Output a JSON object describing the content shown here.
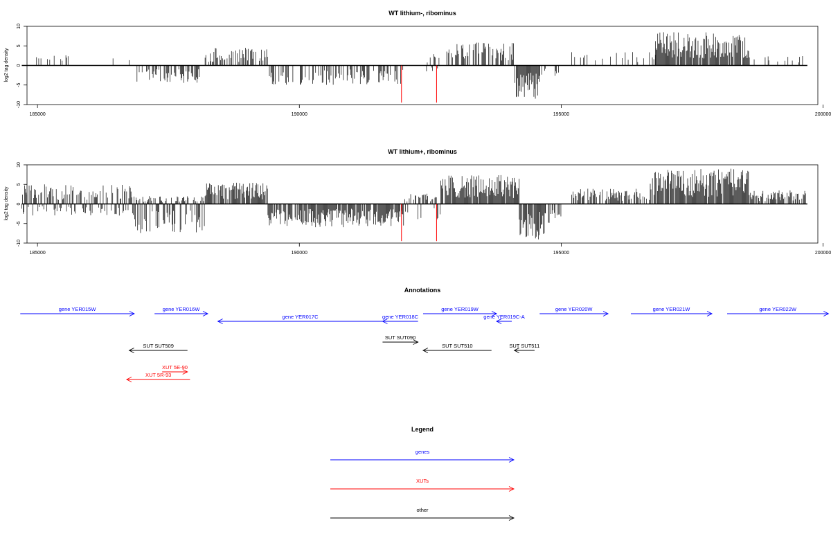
{
  "chart_data": [
    {
      "type": "bar",
      "title": "WT lithium-, ribominus",
      "ylabel": "log2 tag density",
      "xlim": [
        184800,
        199900
      ],
      "ylim": [
        -10,
        10
      ],
      "xticks": [
        185000,
        190000,
        195000,
        200000
      ],
      "xtick_labels": [
        "185000",
        "190000",
        "195000",
        "200000"
      ],
      "yticks": [
        -10,
        -5,
        0,
        5,
        10
      ],
      "ytick_labels": [
        "-10",
        "-5",
        "0",
        "5",
        "10"
      ],
      "baseline": {
        "from": 184700,
        "to": 199700
      },
      "density_profile": [
        {
          "from": 184800,
          "to": 185700,
          "max": 3,
          "min": -1,
          "density": 0.2
        },
        {
          "from": 185700,
          "to": 186900,
          "max": 4,
          "min": -1,
          "density": 0.1
        },
        {
          "from": 186900,
          "to": 188100,
          "max": 1,
          "min": -4.5,
          "density": 0.45
        },
        {
          "from": 188200,
          "to": 189400,
          "max": 4.5,
          "min": -0.5,
          "density": 0.55
        },
        {
          "from": 189400,
          "to": 192000,
          "max": 0.5,
          "min": -5,
          "density": 0.45
        },
        {
          "from": 192400,
          "to": 192700,
          "max": 3,
          "min": -1.5,
          "density": 0.3
        },
        {
          "from": 192800,
          "to": 194100,
          "max": 6,
          "min": -1,
          "density": 0.6
        },
        {
          "from": 194100,
          "to": 194600,
          "max": 0.5,
          "min": -8.5,
          "density": 0.95
        },
        {
          "from": 194600,
          "to": 195000,
          "max": 0.5,
          "min": -3,
          "density": 0.2
        },
        {
          "from": 195200,
          "to": 196800,
          "max": 3.5,
          "min": -0.5,
          "density": 0.15
        },
        {
          "from": 196800,
          "to": 198600,
          "max": 8.5,
          "min": -0.5,
          "density": 0.9
        },
        {
          "from": 198600,
          "to": 199700,
          "max": 3,
          "min": -0.3,
          "density": 0.15
        }
      ],
      "highlights": [
        {
          "x": 191950,
          "y": -9.5,
          "color": "#ff0000"
        },
        {
          "x": 192620,
          "y": -9.5,
          "color": "#ff0000"
        }
      ]
    },
    {
      "type": "bar",
      "title": "WT lithium+, ribominus",
      "ylabel": "log2 tag density",
      "xlim": [
        184800,
        199900
      ],
      "ylim": [
        -10,
        10
      ],
      "xticks": [
        185000,
        190000,
        195000,
        200000
      ],
      "xtick_labels": [
        "185000",
        "190000",
        "195000",
        "200000"
      ],
      "yticks": [
        -10,
        -5,
        0,
        5,
        10
      ],
      "ytick_labels": [
        "-10",
        "-5",
        "0",
        "5",
        "10"
      ],
      "baseline": {
        "from": 184700,
        "to": 199700
      },
      "density_profile": [
        {
          "from": 184700,
          "to": 186800,
          "max": 5,
          "min": -3,
          "density": 0.8
        },
        {
          "from": 186800,
          "to": 188200,
          "max": 2,
          "min": -7.5,
          "density": 0.9
        },
        {
          "from": 188200,
          "to": 189400,
          "max": 5.5,
          "min": -1,
          "density": 0.85
        },
        {
          "from": 189400,
          "to": 192000,
          "max": 1.5,
          "min": -6,
          "density": 0.85
        },
        {
          "from": 192000,
          "to": 192700,
          "max": 3,
          "min": -4,
          "density": 0.6
        },
        {
          "from": 192700,
          "to": 194200,
          "max": 7.5,
          "min": -1,
          "density": 0.95
        },
        {
          "from": 194200,
          "to": 194700,
          "max": 1,
          "min": -9.5,
          "density": 0.95
        },
        {
          "from": 194700,
          "to": 195000,
          "max": 1,
          "min": -5,
          "density": 0.6
        },
        {
          "from": 195200,
          "to": 196700,
          "max": 4,
          "min": -1,
          "density": 0.7
        },
        {
          "from": 196700,
          "to": 198600,
          "max": 9,
          "min": -1,
          "density": 0.95
        },
        {
          "from": 198600,
          "to": 199700,
          "max": 3.5,
          "min": -1,
          "density": 0.7
        }
      ],
      "highlights": [
        {
          "x": 191950,
          "y": -9.5,
          "color": "#ff0000"
        },
        {
          "x": 192620,
          "y": -9.5,
          "color": "#ff0000"
        }
      ]
    }
  ],
  "annotations": {
    "title": "Annotations",
    "xlim": [
      184300,
      200700
    ],
    "features": [
      {
        "label": "gene YER015W",
        "start": 184700,
        "end": 186950,
        "dir": "right",
        "color": "#0000ff",
        "lane": 0
      },
      {
        "label": "gene YER016W",
        "start": 187350,
        "end": 188400,
        "dir": "right",
        "color": "#0000ff",
        "lane": 0
      },
      {
        "label": "gene YER017C",
        "start": 188600,
        "end": 191850,
        "dir": "left",
        "color": "#0000ff",
        "lane": 1
      },
      {
        "label": "gene YER018C",
        "start": 191850,
        "end": 192550,
        "dir": "left",
        "color": "#0000ff",
        "lane": 1
      },
      {
        "label": "gene YER019W",
        "start": 192650,
        "end": 194100,
        "dir": "right",
        "color": "#0000ff",
        "lane": 0
      },
      {
        "label": "gene YER019C-A",
        "start": 194100,
        "end": 194400,
        "dir": "left",
        "color": "#0000ff",
        "lane": 1
      },
      {
        "label": "gene YER020W",
        "start": 194950,
        "end": 196300,
        "dir": "right",
        "color": "#0000ff",
        "lane": 0
      },
      {
        "label": "gene YER021W",
        "start": 196750,
        "end": 198350,
        "dir": "right",
        "color": "#0000ff",
        "lane": 0
      },
      {
        "label": "gene YER022W",
        "start": 198650,
        "end": 200650,
        "dir": "right",
        "color": "#0000ff",
        "lane": 0
      },
      {
        "label": "SUT SUT509",
        "start": 186850,
        "end": 188000,
        "dir": "left",
        "color": "#000000",
        "lane": 3
      },
      {
        "label": "SUT SUT090",
        "start": 191850,
        "end": 192550,
        "dir": "right",
        "color": "#000000",
        "lane": 2
      },
      {
        "label": "SUT SUT510",
        "start": 192650,
        "end": 194000,
        "dir": "left",
        "color": "#000000",
        "lane": 3
      },
      {
        "label": "SUT SUT511",
        "start": 194450,
        "end": 194850,
        "dir": "left",
        "color": "#000000",
        "lane": 3
      },
      {
        "label": "XUT 5E-90",
        "start": 187500,
        "end": 188000,
        "dir": "right",
        "color": "#ff0000",
        "lane": 5
      },
      {
        "label": "XUT 5R-93",
        "start": 186800,
        "end": 188050,
        "dir": "left",
        "color": "#ff0000",
        "lane": 6
      }
    ]
  },
  "legend": {
    "title": "Legend",
    "items": [
      {
        "label": "genes",
        "color": "#0000ff"
      },
      {
        "label": "XUTs",
        "color": "#ff0000"
      },
      {
        "label": "other",
        "color": "#000000"
      }
    ]
  }
}
